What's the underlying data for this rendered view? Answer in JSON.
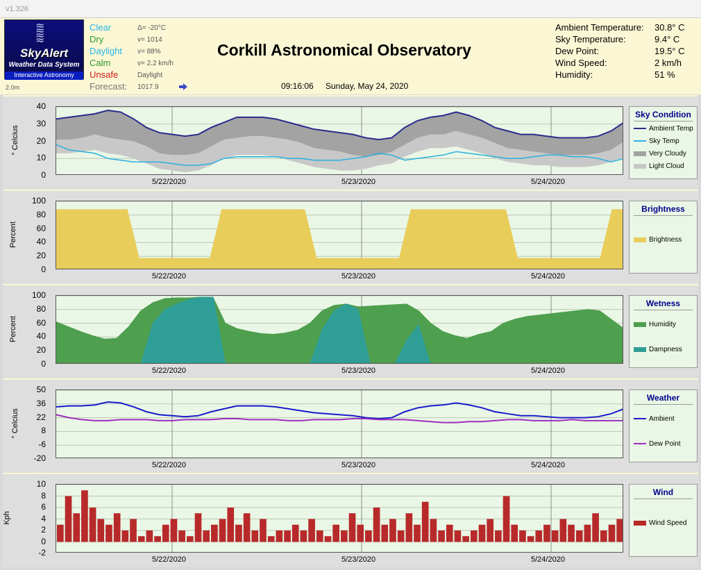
{
  "app": {
    "version": "v1.326"
  },
  "header": {
    "logo": {
      "name": "SkyAlert",
      "subtitle": "Weather Data System",
      "tagline": "Interactive Astronomy"
    },
    "interval": "2.0m",
    "status": [
      {
        "label": "Clear",
        "color": "#27b5e8",
        "detail": "Δ= -20°C"
      },
      {
        "label": "Dry",
        "color": "#2e9a2e",
        "detail": "v= 1014"
      },
      {
        "label": "Daylight",
        "color": "#27b5e8",
        "detail": "v= 88%"
      },
      {
        "label": "Calm",
        "color": "#2e9a2e",
        "detail": "v= 2.2 km/h"
      },
      {
        "label": "Unsafe",
        "color": "#d11a1a",
        "detail": "Daylight"
      }
    ],
    "forecast_label": "Forecast:",
    "forecast_value": "1017.9",
    "title": "Corkill Astronomical Observatory",
    "time": "09:16:06",
    "date": "Sunday, May 24, 2020",
    "readings": [
      {
        "label": "Ambient Temperature:",
        "value": "30.8° C"
      },
      {
        "label": "Sky Temperature:",
        "value": "9.4° C"
      },
      {
        "label": "Dew Point:",
        "value": "19.5° C"
      },
      {
        "label": "Wind Speed:",
        "value": "2 km/h"
      },
      {
        "label": "Humidity:",
        "value": "51 %"
      }
    ]
  },
  "x_labels": [
    "5/22/2020",
    "5/23/2020",
    "5/24/2020"
  ],
  "chart_data": [
    {
      "type": "area",
      "legend_title": "Sky Condition",
      "ylabel": "° Celcius",
      "ylim": [
        0,
        40
      ],
      "yticks": [
        0,
        10,
        20,
        30,
        40
      ],
      "series": [
        {
          "name": "Ambient Temp",
          "color": "#2b2b8c",
          "kind": "line",
          "values": [
            33,
            34,
            35,
            36,
            38,
            37,
            33,
            28,
            25,
            24,
            23,
            24,
            28,
            31,
            34,
            34,
            34,
            33,
            31,
            29,
            27,
            26,
            25,
            24,
            22,
            21,
            22,
            28,
            32,
            34,
            35,
            37,
            35,
            32,
            28,
            26,
            24,
            24,
            23,
            22,
            22,
            22,
            23,
            26,
            31
          ]
        },
        {
          "name": "Sky Temp",
          "color": "#2ab0e0",
          "kind": "line",
          "values": [
            18,
            15,
            14,
            13,
            10,
            9,
            8,
            8,
            8,
            7,
            6,
            6,
            7,
            10,
            11,
            11,
            11,
            11,
            10,
            10,
            9,
            9,
            9,
            10,
            11,
            13,
            12,
            9,
            10,
            11,
            12,
            14,
            13,
            12,
            11,
            10,
            10,
            11,
            12,
            12,
            11,
            11,
            10,
            8,
            10
          ]
        },
        {
          "name": "Very Cloudy",
          "color": "#a3a3a3",
          "kind": "band",
          "upper": "Ambient Temp",
          "lower_values": [
            21,
            21,
            22,
            24,
            22,
            21,
            20,
            17,
            13,
            12,
            12,
            13,
            17,
            21,
            22,
            23,
            23,
            22,
            21,
            19,
            16,
            15,
            14,
            12,
            11,
            12,
            14,
            18,
            22,
            24,
            24,
            26,
            24,
            22,
            19,
            16,
            15,
            14,
            13,
            12,
            12,
            12,
            13,
            15,
            20
          ]
        },
        {
          "name": "Light Cloud",
          "color": "#c8c8c8",
          "kind": "band",
          "lower_values": [
            13,
            13,
            14,
            15,
            13,
            12,
            10,
            7,
            4,
            3,
            2,
            3,
            6,
            10,
            12,
            12,
            12,
            11,
            9,
            7,
            5,
            4,
            3,
            3,
            4,
            6,
            7,
            11,
            14,
            16,
            16,
            17,
            15,
            13,
            10,
            8,
            7,
            6,
            6,
            5,
            5,
            5,
            6,
            8,
            11
          ]
        }
      ]
    },
    {
      "type": "area",
      "legend_title": "Brightness",
      "ylabel": "Percent",
      "ylim": [
        0,
        100
      ],
      "yticks": [
        0,
        20,
        40,
        60,
        80,
        100
      ],
      "series": [
        {
          "name": "Brightness",
          "color": "#e8cd5a",
          "values": [
            88,
            88,
            88,
            88,
            88,
            88,
            88,
            17,
            17,
            17,
            17,
            17,
            17,
            17,
            88,
            88,
            88,
            88,
            88,
            88,
            88,
            88,
            17,
            17,
            17,
            17,
            17,
            17,
            17,
            17,
            88,
            88,
            88,
            88,
            88,
            88,
            88,
            88,
            88,
            17,
            17,
            17,
            17,
            17,
            17,
            17,
            17,
            88,
            88
          ]
        }
      ]
    },
    {
      "type": "area",
      "legend_title": "Wetness",
      "ylabel": "Percent",
      "ylim": [
        0,
        100
      ],
      "yticks": [
        0,
        20,
        40,
        60,
        80,
        100
      ],
      "series": [
        {
          "name": "Humidity",
          "color": "#4e9f4e",
          "values": [
            62,
            55,
            48,
            42,
            37,
            38,
            55,
            78,
            90,
            96,
            97,
            97,
            98,
            97,
            60,
            52,
            48,
            45,
            44,
            46,
            50,
            60,
            78,
            86,
            88,
            84,
            85,
            86,
            87,
            88,
            78,
            60,
            48,
            42,
            38,
            44,
            48,
            60,
            66,
            70,
            72,
            74,
            76,
            78,
            80,
            78,
            65,
            52
          ]
        },
        {
          "name": "Dampness",
          "color": "#2f9e96",
          "values": [
            0,
            0,
            0,
            0,
            0,
            0,
            0,
            0,
            60,
            80,
            88,
            95,
            98,
            98,
            0,
            0,
            0,
            0,
            0,
            0,
            0,
            0,
            50,
            78,
            88,
            80,
            0,
            0,
            0,
            35,
            58,
            0,
            0,
            0,
            0,
            0,
            0,
            0,
            0,
            0,
            0,
            0,
            0,
            0,
            0,
            0,
            0,
            0
          ]
        }
      ]
    },
    {
      "type": "line",
      "legend_title": "Weather",
      "ylabel": "° Celcius",
      "ylim": [
        -20,
        50
      ],
      "yticks": [
        -20,
        -6,
        8,
        22,
        36,
        50
      ],
      "series": [
        {
          "name": "Ambient",
          "color": "#1a1acc",
          "values": [
            33,
            34,
            34,
            35,
            38,
            37,
            33,
            28,
            25,
            24,
            23,
            24,
            28,
            31,
            34,
            34,
            34,
            33,
            31,
            29,
            27,
            26,
            25,
            24,
            22,
            21,
            22,
            28,
            32,
            34,
            35,
            37,
            35,
            32,
            28,
            26,
            24,
            24,
            23,
            22,
            22,
            22,
            23,
            26,
            31
          ]
        },
        {
          "name": "Dew Point",
          "color": "#9b2fc0",
          "values": [
            25,
            22,
            20,
            19,
            19,
            20,
            20,
            20,
            19,
            19,
            20,
            20,
            20,
            21,
            21,
            20,
            20,
            20,
            19,
            19,
            20,
            20,
            20,
            21,
            21,
            20,
            20,
            20,
            19,
            18,
            17,
            17,
            18,
            18,
            19,
            20,
            20,
            19,
            19,
            19,
            20,
            19,
            19,
            19,
            19
          ]
        }
      ]
    },
    {
      "type": "bar",
      "legend_title": "Wind",
      "ylabel": "Kph",
      "ylim": [
        -2,
        10
      ],
      "yticks": [
        -2,
        0,
        2,
        4,
        6,
        8,
        10
      ],
      "series": [
        {
          "name": "Wind Speed",
          "color": "#b82a2a",
          "values": [
            3,
            8,
            5,
            9,
            6,
            4,
            3,
            5,
            2,
            4,
            1,
            2,
            1,
            3,
            4,
            2,
            1,
            5,
            2,
            3,
            4,
            6,
            3,
            5,
            2,
            4,
            1,
            2,
            2,
            3,
            2,
            4,
            2,
            1,
            3,
            2,
            5,
            3,
            2,
            6,
            3,
            4,
            2,
            5,
            3,
            7,
            4,
            2,
            3,
            2,
            1,
            2,
            3,
            4,
            2,
            8,
            3,
            2,
            1,
            2,
            3,
            2,
            4,
            3,
            2,
            3,
            5,
            2,
            3,
            4
          ]
        }
      ]
    }
  ]
}
